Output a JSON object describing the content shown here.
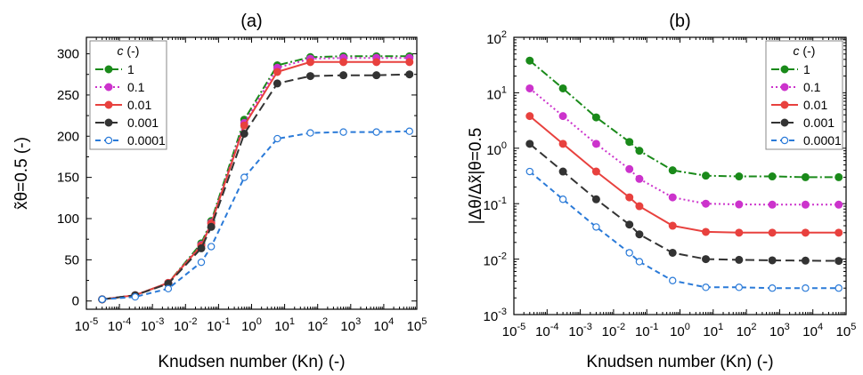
{
  "chart_data": [
    {
      "panel": "(a)",
      "type": "line",
      "xscale": "log",
      "yscale": "linear",
      "xlabel": "Knudsen number (Kn) (-)",
      "ylabel": "x̃θ=0.5 (-)",
      "xlim": [
        1e-05,
        100000.0
      ],
      "ylim": [
        -10,
        320
      ],
      "x_ticks": [
        1e-05,
        0.0001,
        0.001,
        0.01,
        0.1,
        1,
        10,
        100,
        1000,
        10000,
        100000
      ],
      "x_tick_labels": [
        {
          "base": "10",
          "exp": "-5"
        },
        {
          "base": "10",
          "exp": "-4"
        },
        {
          "base": "10",
          "exp": "-3"
        },
        {
          "base": "10",
          "exp": "-2"
        },
        {
          "base": "10",
          "exp": "-1"
        },
        {
          "base": "10",
          "exp": "0"
        },
        {
          "base": "10",
          "exp": "1"
        },
        {
          "base": "10",
          "exp": "2"
        },
        {
          "base": "10",
          "exp": "3"
        },
        {
          "base": "10",
          "exp": "4"
        },
        {
          "base": "10",
          "exp": "5"
        }
      ],
      "y_ticks": [
        0,
        50,
        100,
        150,
        200,
        250,
        300
      ],
      "y_tick_labels": [
        "0",
        "50",
        "100",
        "150",
        "200",
        "250",
        "300"
      ],
      "legend": {
        "title": "c (-)",
        "placement": "top-left"
      },
      "x": [
        3e-05,
        0.0003,
        0.003,
        0.03,
        0.06,
        0.6,
        6,
        60,
        600,
        6000,
        60000
      ],
      "series": [
        {
          "name": "1",
          "color": "#1a8a1a",
          "dash": "9 3 2 3",
          "marker": "dot",
          "values": [
            2,
            7,
            22,
            70,
            97,
            220,
            286,
            296,
            297,
            297,
            297
          ]
        },
        {
          "name": "0.1",
          "color": "#cc33cc",
          "dash": "2 3",
          "marker": "dot",
          "values": [
            2,
            7,
            22,
            68,
            95,
            216,
            283,
            294,
            295,
            295,
            295
          ]
        },
        {
          "name": "0.01",
          "color": "#e8413e",
          "dash": "",
          "marker": "dot",
          "values": [
            2,
            7,
            22,
            67,
            94,
            213,
            278,
            290,
            290,
            290,
            290
          ]
        },
        {
          "name": "0.001",
          "color": "#333333",
          "dash": "10 5",
          "marker": "dot",
          "values": [
            2,
            7,
            21,
            64,
            90,
            203,
            264,
            273,
            274,
            274,
            275
          ]
        },
        {
          "name": "0.0001",
          "color": "#2a7ad8",
          "dash": "6 4",
          "marker": "circle-open",
          "values": [
            2,
            5,
            15,
            47,
            66,
            150,
            197,
            204,
            205,
            205,
            206
          ]
        }
      ]
    },
    {
      "panel": "(b)",
      "type": "line",
      "xscale": "log",
      "yscale": "log",
      "xlabel": "Knudsen number (Kn) (-)",
      "ylabel": "|Δθ/Δx̃|θ=0.5",
      "xlim": [
        1e-05,
        100000.0
      ],
      "ylim": [
        0.001,
        100.0
      ],
      "x_ticks": [
        1e-05,
        0.0001,
        0.001,
        0.01,
        0.1,
        1,
        10,
        100,
        1000,
        10000,
        100000
      ],
      "x_tick_labels": [
        {
          "base": "10",
          "exp": "-5"
        },
        {
          "base": "10",
          "exp": "-4"
        },
        {
          "base": "10",
          "exp": "-3"
        },
        {
          "base": "10",
          "exp": "-2"
        },
        {
          "base": "10",
          "exp": "-1"
        },
        {
          "base": "10",
          "exp": "0"
        },
        {
          "base": "10",
          "exp": "1"
        },
        {
          "base": "10",
          "exp": "2"
        },
        {
          "base": "10",
          "exp": "3"
        },
        {
          "base": "10",
          "exp": "4"
        },
        {
          "base": "10",
          "exp": "5"
        }
      ],
      "y_ticks": [
        0.001,
        0.01,
        0.1,
        1,
        10,
        100
      ],
      "y_tick_labels": [
        {
          "base": "10",
          "exp": "-3"
        },
        {
          "base": "10",
          "exp": "-2"
        },
        {
          "base": "10",
          "exp": "-1"
        },
        {
          "base": "10",
          "exp": "0"
        },
        {
          "base": "10",
          "exp": "1"
        },
        {
          "base": "10",
          "exp": "2"
        }
      ],
      "legend": {
        "title": "c (-)",
        "placement": "top-right"
      },
      "x": [
        3e-05,
        0.0003,
        0.003,
        0.03,
        0.06,
        0.6,
        6,
        60,
        600,
        6000,
        60000
      ],
      "series": [
        {
          "name": "1",
          "color": "#1a8a1a",
          "dash": "9 3 2 3",
          "marker": "dot",
          "values": [
            38,
            12,
            3.6,
            1.3,
            0.9,
            0.4,
            0.32,
            0.31,
            0.31,
            0.3,
            0.3
          ]
        },
        {
          "name": "0.1",
          "color": "#cc33cc",
          "dash": "2 3",
          "marker": "dot",
          "values": [
            12,
            3.8,
            1.2,
            0.42,
            0.28,
            0.13,
            0.1,
            0.097,
            0.096,
            0.096,
            0.096
          ]
        },
        {
          "name": "0.01",
          "color": "#e8413e",
          "dash": "",
          "marker": "dot",
          "values": [
            3.8,
            1.2,
            0.38,
            0.13,
            0.09,
            0.04,
            0.031,
            0.03,
            0.03,
            0.03,
            0.03
          ]
        },
        {
          "name": "0.001",
          "color": "#333333",
          "dash": "10 5",
          "marker": "dot",
          "values": [
            1.2,
            0.38,
            0.12,
            0.042,
            0.028,
            0.013,
            0.01,
            0.0097,
            0.0095,
            0.0094,
            0.0093
          ]
        },
        {
          "name": "0.0001",
          "color": "#2a7ad8",
          "dash": "6 4",
          "marker": "circle-open",
          "values": [
            0.38,
            0.12,
            0.038,
            0.013,
            0.009,
            0.0041,
            0.0031,
            0.0031,
            0.003,
            0.003,
            0.003
          ]
        }
      ]
    }
  ]
}
